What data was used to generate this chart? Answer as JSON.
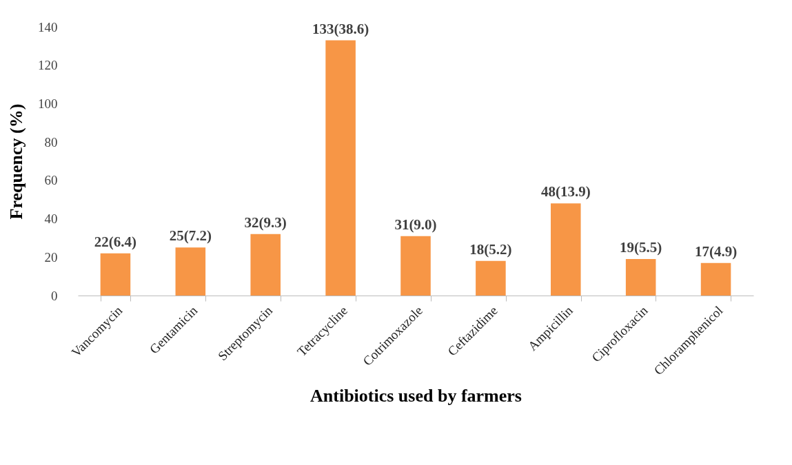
{
  "chart_data": {
    "type": "bar",
    "xlabel": "Antibiotics used by farmers",
    "ylabel": "Frequency (%)",
    "categories": [
      "Vancomycin",
      "Gentamicin",
      "Streptomycin",
      "Tetracycline",
      "Cotrimoxazole",
      "Ceftazidime",
      "Ampicillin",
      "Ciprofloxacin",
      "Chloramphenicol"
    ],
    "values": [
      22,
      25,
      32,
      133,
      31,
      18,
      48,
      19,
      17
    ],
    "value_labels": [
      "22(6.4)",
      "25(7.2)",
      "32(9.3)",
      "133(38.6)",
      "31(9.0)",
      "18(5.2)",
      "48(13.9)",
      "19(5.5)",
      "17(4.9)"
    ],
    "color": "#f79646",
    "ylim": [
      0,
      140
    ],
    "yticks": [
      0,
      20,
      40,
      60,
      80,
      100,
      120,
      140
    ]
  }
}
